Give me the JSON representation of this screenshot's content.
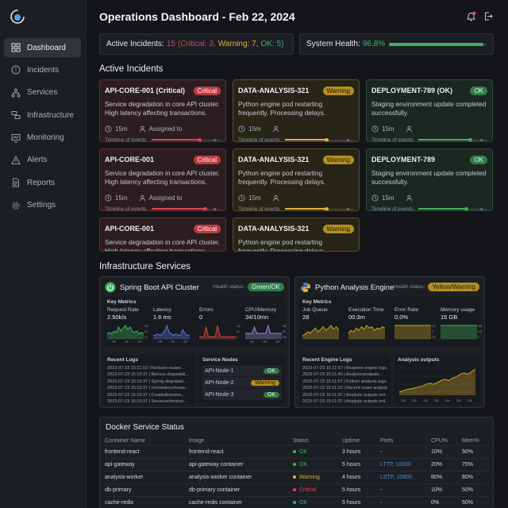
{
  "header": {
    "title": "Operations Dashboard - Feb 22, 2024"
  },
  "sidebar": {
    "items": [
      {
        "label": "Dashboard",
        "icon": "grid-icon"
      },
      {
        "label": "Incidents",
        "icon": "alert-circle-icon"
      },
      {
        "label": "Services",
        "icon": "hierarchy-icon"
      },
      {
        "label": "Infrastructure",
        "icon": "server-icon"
      },
      {
        "label": "Monitoring",
        "icon": "monitor-icon"
      },
      {
        "label": "Alerts",
        "icon": "warning-triangle-icon"
      },
      {
        "label": "Reports",
        "icon": "document-icon"
      },
      {
        "label": "Settings",
        "icon": "gear-icon"
      }
    ]
  },
  "stats": {
    "incidents_label": "Active Incidents:",
    "incidents_total": "15",
    "crit_text": "(Critical: 3,",
    "warn_text": "Warning: 7,",
    "ok_text": "OK: 5)",
    "health_label": "System Health:",
    "health_value": "96.8%",
    "health_fraction": 0.968
  },
  "incidents": {
    "title": "Active Incidents",
    "cards": [
      {
        "title": "API-CORE-001 (Critical)",
        "badge": "Critical",
        "level": "crit",
        "desc": "Service degradation in core API cluster. High latency affecting transactions.",
        "time": "15m",
        "assign": "Assigned to",
        "timeline": "Timeline of events",
        "progress": 0.7
      },
      {
        "title": "DATA-ANALYSIS-321",
        "badge": "Warning",
        "level": "warn",
        "desc": "Python engine pod restarting frequently. Processing delays.",
        "time": "15m",
        "assign": "",
        "timeline": "Timeline of events",
        "progress": 0.6
      },
      {
        "title": "DEPLOYMENT-789 (OK)",
        "badge": "OK",
        "level": "ok",
        "desc": "Staging environment update completed successfully.",
        "time": "15m",
        "assign": "",
        "timeline": "Timeline of events",
        "progress": 0.75
      },
      {
        "title": "API-CORE-001",
        "badge": "Critical",
        "level": "crit",
        "desc": "Service degradation in core API cluster. High latency affecting transactions.",
        "time": "15m",
        "assign": "Assigned to",
        "timeline": "Timeline of events",
        "progress": 0.78
      },
      {
        "title": "DATA-ANALYSIS-321",
        "badge": "Warning",
        "level": "warn",
        "desc": "Python engine pod restarting frequently. Processing delays.",
        "time": "15m",
        "assign": "",
        "timeline": "Timeline of events",
        "progress": 0.6
      },
      {
        "title": "DEPLOYMENT-789",
        "badge": "OK",
        "level": "ok",
        "desc": "Staging environment update completed successfully.",
        "time": "15m",
        "assign": "",
        "timeline": "Timeline of events",
        "progress": 0.7
      },
      {
        "title": "API-CORE-001",
        "badge": "Critical",
        "level": "crit",
        "desc": "Service degradation in core API cluster. High latency affecting transactions.",
        "time": "",
        "assign": "",
        "timeline": "",
        "progress": 0
      },
      {
        "title": "DATA-ANALYSIS-321",
        "badge": "Warning",
        "level": "warn",
        "desc": "Python engine pod restarting frequently. Processing delays.",
        "time": "",
        "assign": "",
        "timeline": "",
        "progress": 0
      }
    ]
  },
  "infra": {
    "title": "Infrastructure Services",
    "services": [
      {
        "name": "Spring Boot API Cluster",
        "icon": "spring-icon",
        "health_label": "Health status:",
        "health": "Green/OK",
        "level": "ok",
        "metrics_title": "Key Metrics",
        "metrics": [
          {
            "label": "Request Rate",
            "value": "2.50k/s",
            "color": "#3fb35a",
            "ticks": [
              "100",
              "50",
              "10"
            ],
            "xticks": [
              "10k",
              "10k",
              "10k"
            ]
          },
          {
            "label": "Latency",
            "value": "1.6 ms",
            "color": "#5b79d6",
            "ticks": [],
            "xticks": [
              "10k",
              "10k",
              "200"
            ]
          },
          {
            "label": "Errors",
            "value": "0",
            "color": "#d9453d",
            "ticks": [
              "100",
              "50",
              "0"
            ],
            "xticks": []
          },
          {
            "label": "CPU/Memory",
            "value": "34/10mn",
            "color": "#9a88d8",
            "ticks": [
              "100M",
              "50",
              "50M"
            ],
            "xticks": [
              "10k",
              "10k",
              "200"
            ]
          }
        ],
        "logs_title": "Recent Logs",
        "logs": [
          "2023-07-23 15:11:33 | Ronkoot-routee...",
          "2023-07-23 15:10:37 | Berisse degradati...",
          "2023-07-23 15:10:37 | Spring degradati...",
          "2023-07-23 15:10:37 | normedreceivnee...",
          "2023-07-23 15:10:37 | Createdinoneer...",
          "2023-07-23 15:10:37 | Serveoor/tmsbut..."
        ],
        "nodes_title": "Service Nodes",
        "nodes": [
          {
            "name": "API-Node-1",
            "status": "OK",
            "level": "ok"
          },
          {
            "name": "API-Node-2",
            "status": "Warning",
            "level": "warn"
          },
          {
            "name": "API-Node-3",
            "status": "OK",
            "level": "ok"
          }
        ]
      },
      {
        "name": "Python Analysis Engine",
        "icon": "python-icon",
        "health_label": "Health status:",
        "health": "Yellow/Warning",
        "level": "warn",
        "metrics_title": "Key Metrics",
        "metrics": [
          {
            "label": "Job Queue",
            "value": "28",
            "color": "#c9a227",
            "ticks": [],
            "xticks": []
          },
          {
            "label": "Execution Time",
            "value": "00:3m",
            "color": "#c9a227",
            "ticks": [],
            "xticks": []
          },
          {
            "label": "Error Rate",
            "value": "0.0%",
            "color": "#c9a227",
            "ticks": [
              "10%",
              "0",
              "0.5%"
            ],
            "xticks": []
          },
          {
            "label": "Memory usage",
            "value": "15 GB",
            "color": "#3fb35a",
            "ticks": [
              "15B",
              "10%",
              "0"
            ],
            "xticks": []
          }
        ],
        "logs_title": "Recent Engine Logs",
        "logs": [
          "2023-07-23 15:11:57 | Bsspooo engine logs...",
          "2023-07-23 15:11:40 | Analysicsoutputs...",
          "2023-07-23 15:11:57 | Python analysis logs...",
          "2023-07-23 15:11:23 | Recent exam analysis...",
          "2023-07-23 15:11:37 | Analysis outputs ont...",
          "2023-07-23 15:11:37 | Analysis outputs ont..."
        ],
        "chart_title": "Analysis outputs",
        "chart_xticks": [
          "20k",
          "20k",
          "20k",
          "20k",
          "20k",
          "20k",
          "20k"
        ],
        "chart_values": [
          2,
          3,
          4,
          4.5,
          5,
          6,
          6.5,
          8,
          9,
          8,
          9.5,
          11,
          12,
          11,
          13,
          14,
          16,
          17,
          16,
          18,
          20
        ]
      }
    ]
  },
  "docker": {
    "title": "Docker Service Status",
    "columns": [
      "Container Name",
      "Image",
      "Status",
      "Uptime",
      "Ports",
      "CPU%",
      "Mem%"
    ],
    "rows": [
      {
        "name": "frontend-react",
        "image": "frontend-react",
        "status": "OK",
        "level": "ok",
        "uptime": "3 hours",
        "ports": "-",
        "cpu": "10%",
        "mem": "50%"
      },
      {
        "name": "api-gateway",
        "image": "api-gateway container",
        "status": "OK",
        "level": "ok",
        "uptime": "5 hours",
        "ports": "LTTP, 10000",
        "cpu": "20%",
        "mem": "75%"
      },
      {
        "name": "analysis-worker",
        "image": "analysis-worker container",
        "status": "Warning",
        "level": "warn",
        "uptime": "4 hours",
        "ports": "LSTP, 10800",
        "cpu": "80%",
        "mem": "80%"
      },
      {
        "name": "db-primary",
        "image": "db-primary container",
        "status": "Critical",
        "level": "crit",
        "uptime": "5 hours",
        "ports": "-",
        "cpu": "10%",
        "mem": "50%"
      },
      {
        "name": "cache-redis",
        "image": "cache-redis container",
        "status": "OK",
        "level": "ok",
        "uptime": "5 hours",
        "ports": "-",
        "cpu": "0%",
        "mem": "50%"
      }
    ]
  },
  "colors": {
    "crit": "#e0464e",
    "warn": "#e2b33a",
    "ok": "#3fb35a",
    "accent": "#3fb35a"
  }
}
